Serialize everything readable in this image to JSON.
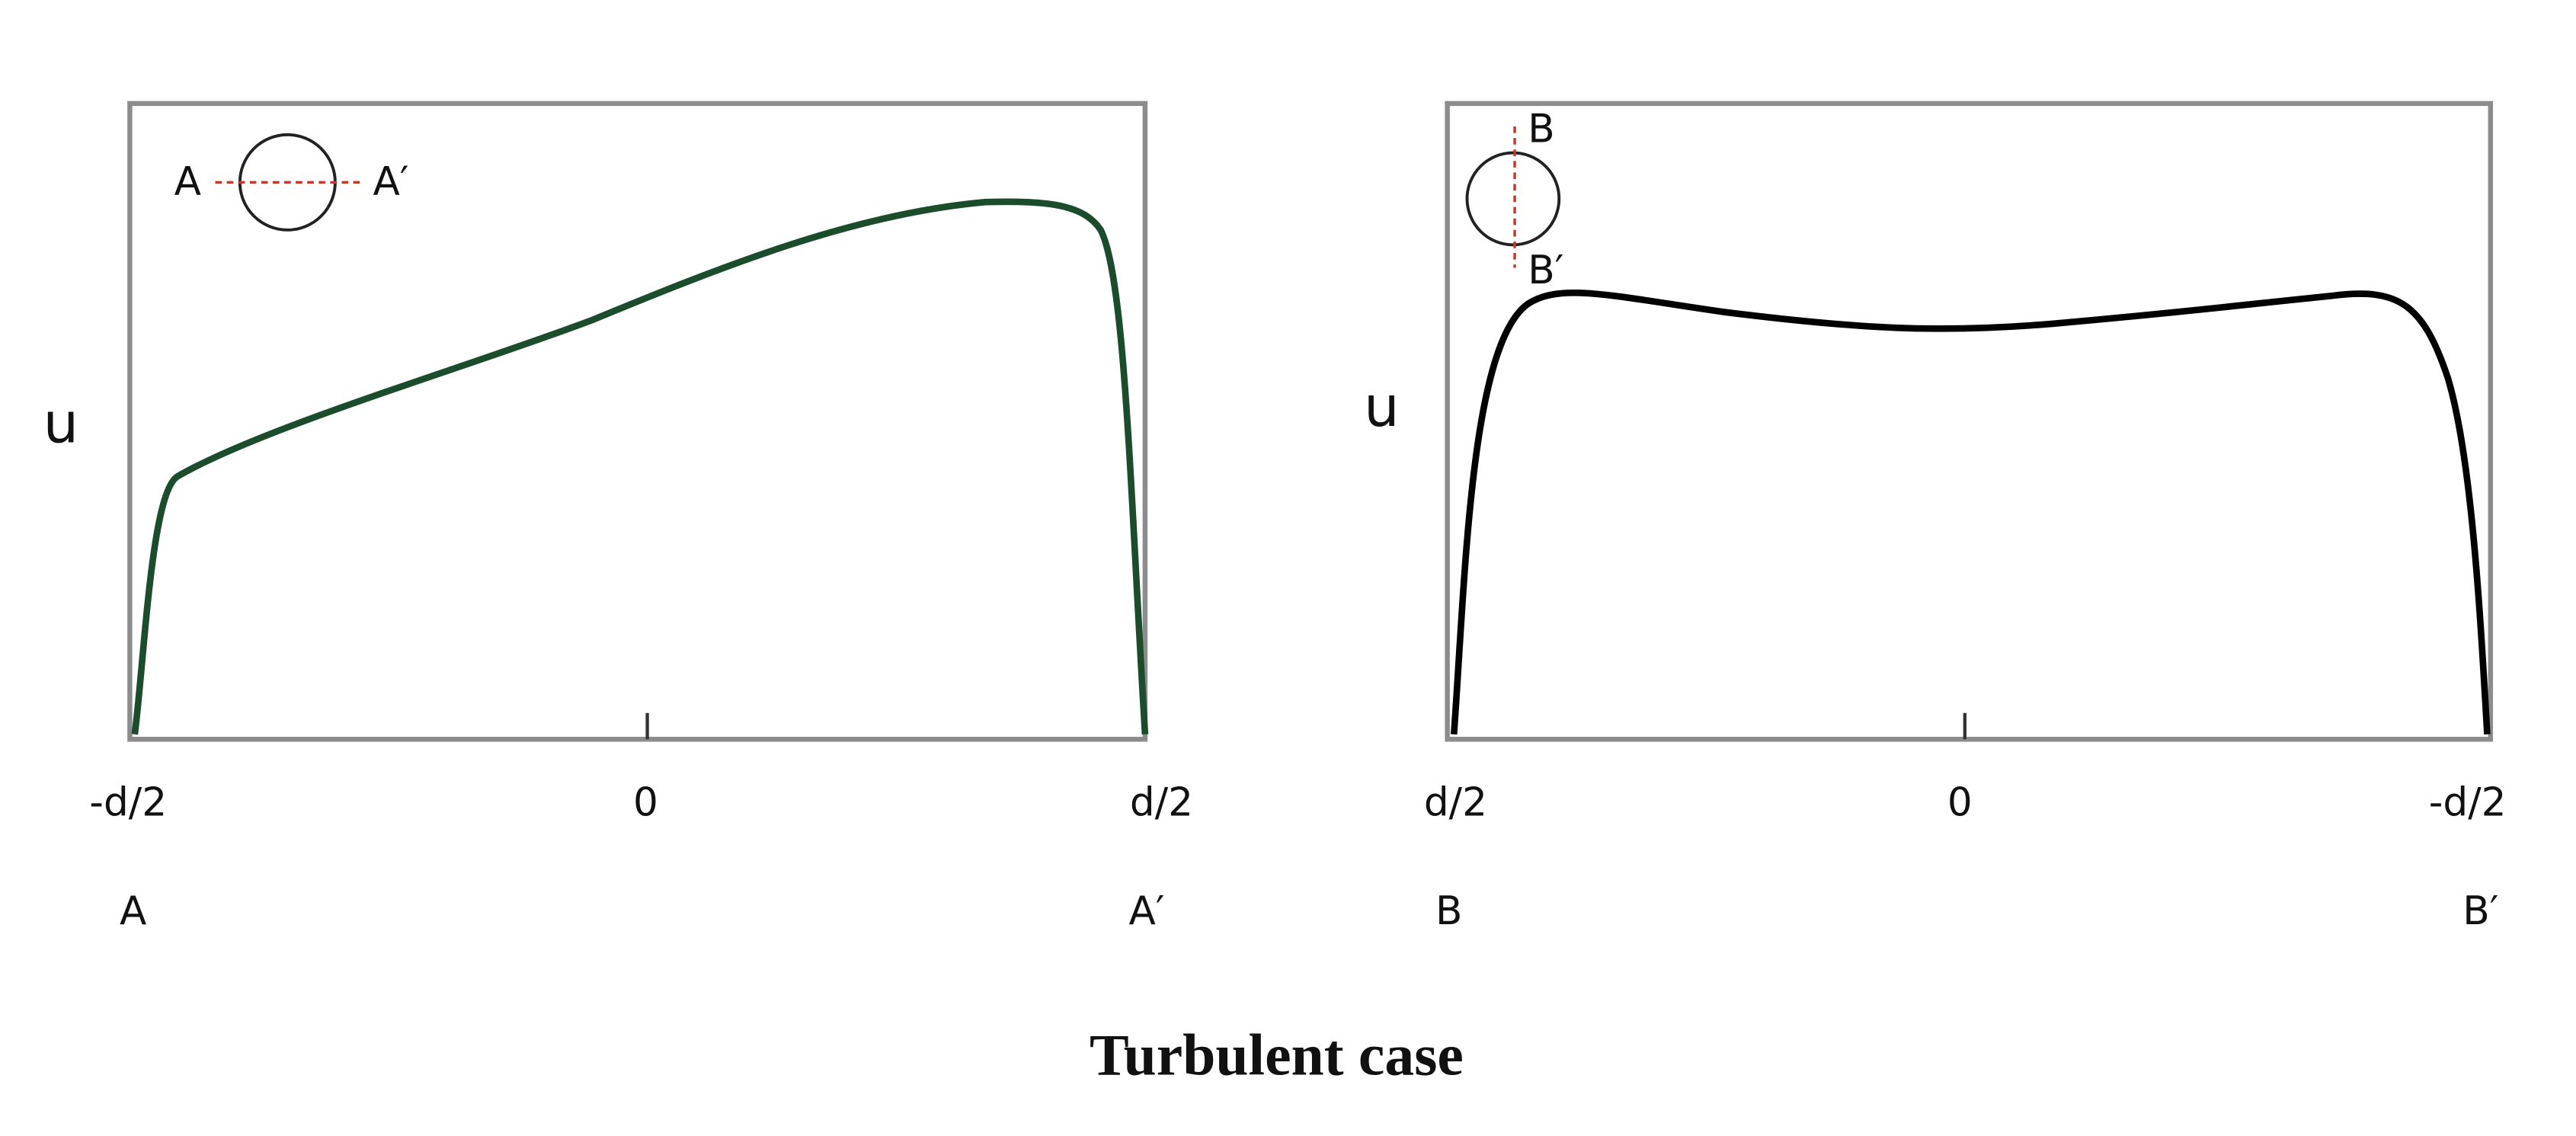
{
  "title": "Turbulent case",
  "panels": [
    {
      "y_label": "u",
      "x_labels": [
        "-d/2",
        "0",
        "d/2"
      ],
      "ends": [
        "A",
        "A′"
      ],
      "inset": [
        "A",
        "A′"
      ]
    },
    {
      "y_label": "u",
      "x_labels": [
        "d/2",
        "0",
        "-d/2"
      ],
      "ends": [
        "B",
        "B′"
      ],
      "inset": [
        "B",
        "B′"
      ]
    }
  ]
}
